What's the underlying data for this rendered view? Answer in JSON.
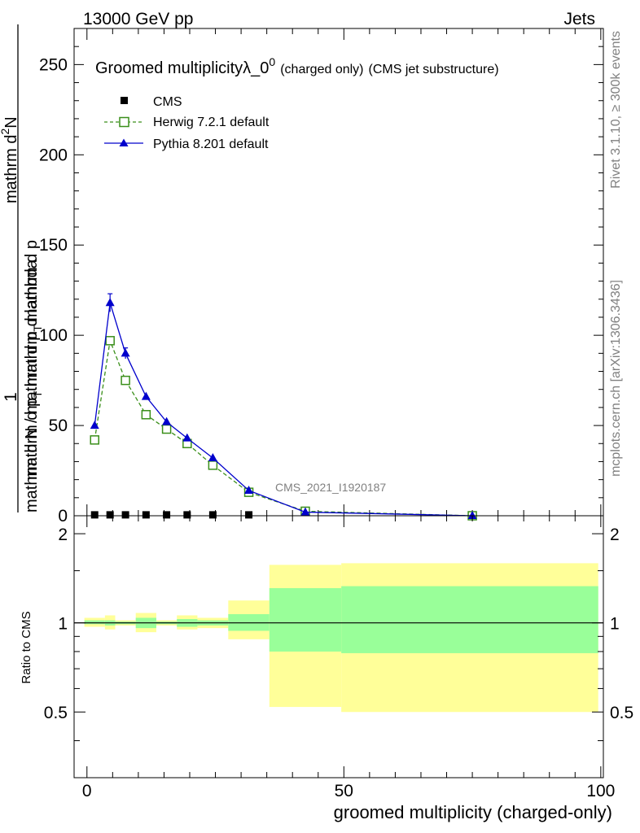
{
  "header": {
    "left": "13000 GeV pp",
    "right": "Jets"
  },
  "side_labels": {
    "rivet": "Rivet 3.1.10, ≥ 300k events",
    "mcplots": "mcplots.cern.ch [arXiv:1306.3436]"
  },
  "chart_data": [
    {
      "type": "line",
      "title": {
        "main": "Groomed multiplicityλ_0",
        "sup": "0",
        "small": "(charged only)",
        "suffix": "(CMS jet substructure)"
      },
      "watermark": "CMS_2021_I1920187",
      "ylabel": {
        "one": "1",
        "denom": "mathrm d N / mathrm d p",
        "denom_sub": "T",
        "denom_rest": "mathrm d p",
        "numer": "mathrm d",
        "numer_sup": "2",
        "numer_rest": "N",
        "numer2": "mathrm d p",
        "numer2_sub": "T",
        "numer2_rest": " mathrm d lambda"
      },
      "ylim": [
        0,
        270
      ],
      "xlim": [
        -2.5,
        100.5
      ],
      "y_ticks": [
        "0",
        "50",
        "100",
        "150",
        "200",
        "250"
      ],
      "legend": {
        "placement": "top-left",
        "cms": "CMS",
        "herwig": "Herwig 7.2.1 default",
        "pythia": "Pythia 8.201 default"
      },
      "series": [
        {
          "name": "CMS",
          "color": "#000000",
          "marker": "square",
          "x": [
            1.5,
            4.5,
            7.5,
            11.5,
            15.5,
            19.5,
            24.5,
            31.5
          ],
          "y": [
            0.5,
            0.5,
            0.5,
            0.5,
            0.5,
            0.5,
            0.5,
            0.5
          ]
        },
        {
          "name": "Herwig 7.2.1 default",
          "color": "#3a8f1a",
          "marker": "open-square",
          "line": "dashed",
          "x": [
            1.5,
            4.5,
            7.5,
            11.5,
            15.5,
            19.5,
            24.5,
            31.5,
            42.5,
            75.0
          ],
          "y": [
            42,
            97,
            75,
            56,
            48,
            40,
            28,
            13,
            2.5,
            0
          ]
        },
        {
          "name": "Pythia 8.201 default",
          "color": "#0000cc",
          "marker": "triangle",
          "line": "solid",
          "x": [
            1.5,
            4.5,
            7.5,
            11.5,
            15.5,
            19.5,
            24.5,
            31.5,
            42.5,
            75.0
          ],
          "y": [
            50,
            118,
            90,
            66,
            52,
            43,
            32,
            14,
            2,
            0
          ],
          "yerr": [
            0,
            5,
            3,
            0,
            0,
            0,
            0,
            0,
            0,
            0
          ]
        }
      ]
    },
    {
      "type": "area",
      "ylabel": "Ratio to CMS",
      "xlabel": "groomed multiplicity (charged-only)",
      "ylim": [
        0.3,
        2.3
      ],
      "xlim": [
        -2.5,
        100.5
      ],
      "x_ticks": [
        "0",
        "50",
        "100"
      ],
      "y_ticks": [
        "0.5",
        "1",
        "2"
      ],
      "reference": 1.0,
      "bands": [
        {
          "x0": -0.5,
          "x1": 3.5,
          "y_lo": 0.97,
          "y_hi": 1.04,
          "s_lo": 0.99,
          "s_hi": 1.02
        },
        {
          "x0": 3.5,
          "x1": 5.5,
          "y_lo": 0.95,
          "y_hi": 1.06,
          "s_lo": 0.98,
          "s_hi": 1.02
        },
        {
          "x0": 5.5,
          "x1": 9.5,
          "y_lo": 0.98,
          "y_hi": 1.02,
          "s_lo": 0.99,
          "s_hi": 1.01
        },
        {
          "x0": 9.5,
          "x1": 13.5,
          "y_lo": 0.93,
          "y_hi": 1.08,
          "s_lo": 0.96,
          "s_hi": 1.04
        },
        {
          "x0": 13.5,
          "x1": 17.5,
          "y_lo": 0.98,
          "y_hi": 1.02,
          "s_lo": 0.99,
          "s_hi": 1.01
        },
        {
          "x0": 17.5,
          "x1": 21.5,
          "y_lo": 0.95,
          "y_hi": 1.06,
          "s_lo": 0.97,
          "s_hi": 1.03
        },
        {
          "x0": 21.5,
          "x1": 27.5,
          "y_lo": 0.96,
          "y_hi": 1.04,
          "s_lo": 0.98,
          "s_hi": 1.02
        },
        {
          "x0": 27.5,
          "x1": 35.5,
          "y_lo": 0.88,
          "y_hi": 1.19,
          "s_lo": 0.94,
          "s_hi": 1.07
        },
        {
          "x0": 35.5,
          "x1": 49.5,
          "y_lo": 0.52,
          "y_hi": 1.57,
          "s_lo": 0.8,
          "s_hi": 1.31
        },
        {
          "x0": 49.5,
          "x1": 99.5,
          "y_lo": 0.5,
          "y_hi": 1.59,
          "s_lo": 0.79,
          "s_hi": 1.33
        }
      ]
    }
  ]
}
